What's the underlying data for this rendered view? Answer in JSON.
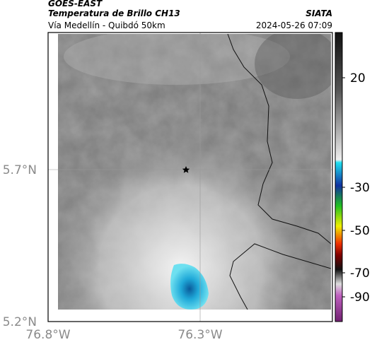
{
  "header": {
    "source": "GOES-EAST",
    "title": "Temperatura de Brillo CH13",
    "subtitle": "Vía Medellín - Quibdó 50km",
    "credit": "SIATA",
    "timestamp": "2024-05-26 07:09"
  },
  "map": {
    "lat_labels": [
      "5.7°N",
      "5.2°N"
    ],
    "lon_labels": [
      "76.8°W",
      "76.3°W"
    ]
  },
  "colorbar": {
    "tick_labels": [
      "20",
      "-30",
      "-50",
      "-70",
      "-90"
    ]
  }
}
